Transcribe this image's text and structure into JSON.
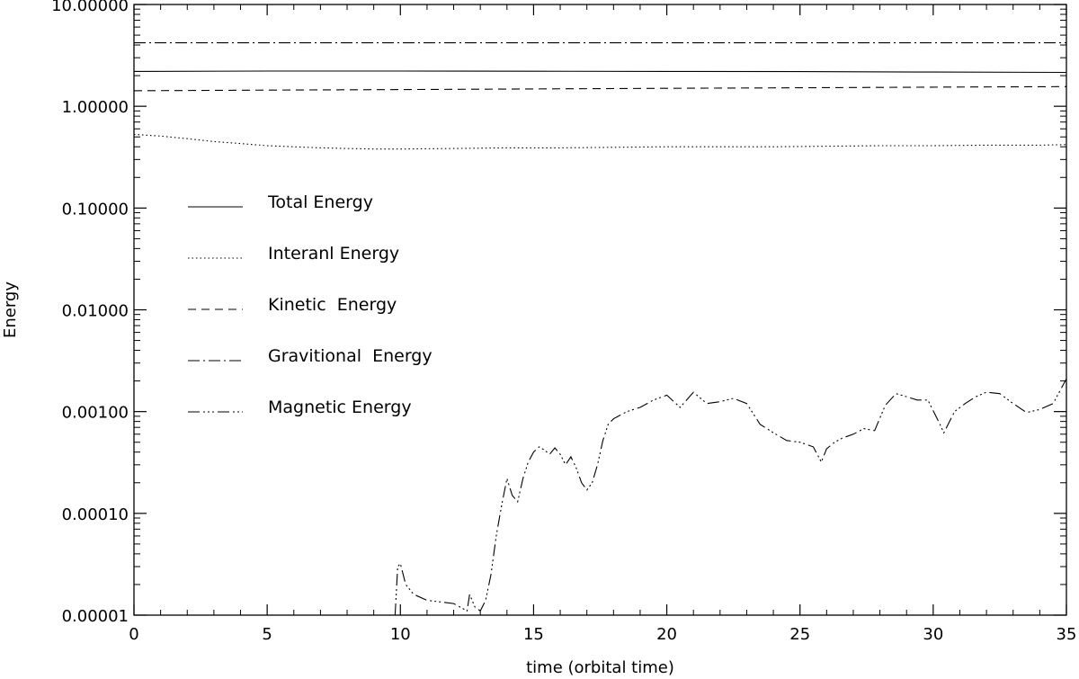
{
  "chart_data": {
    "type": "line",
    "title": "",
    "xlabel": "time (orbital time)",
    "ylabel": "Energy",
    "xlim": [
      0,
      35
    ],
    "ylim": [
      1e-05,
      10
    ],
    "yscale": "log",
    "grid": false,
    "legend_position": "left",
    "x_ticks": [
      0,
      5,
      10,
      15,
      20,
      25,
      30,
      35
    ],
    "x_tick_labels": [
      "0",
      "5",
      "10",
      "15",
      "20",
      "25",
      "30",
      "35"
    ],
    "y_ticks": [
      1e-05,
      0.0001,
      0.001,
      0.01,
      0.1,
      1,
      10
    ],
    "y_tick_labels": [
      "0.00001",
      "0.00010",
      "0.00100",
      "0.01000",
      "0.10000",
      "1.00000",
      "10.00000"
    ],
    "series": [
      {
        "name": "Total Energy",
        "dash": "solid",
        "x": [
          0,
          5,
          10,
          15,
          20,
          25,
          30,
          35
        ],
        "y": [
          2.2,
          2.22,
          2.22,
          2.21,
          2.2,
          2.19,
          2.17,
          2.15
        ]
      },
      {
        "name": "Interanl Energy",
        "dash": "dotted",
        "x": [
          0,
          1,
          2,
          3,
          4,
          5,
          6,
          7,
          8,
          9,
          10,
          12,
          14,
          16,
          18,
          20,
          22,
          24,
          26,
          28,
          30,
          32,
          34,
          35
        ],
        "y": [
          0.53,
          0.51,
          0.48,
          0.45,
          0.43,
          0.41,
          0.4,
          0.39,
          0.385,
          0.38,
          0.38,
          0.385,
          0.39,
          0.39,
          0.395,
          0.4,
          0.4,
          0.4,
          0.405,
          0.41,
          0.41,
          0.415,
          0.415,
          0.42
        ]
      },
      {
        "name": "Kinetic  Energy",
        "dash": "dashed",
        "x": [
          0,
          5,
          10,
          15,
          20,
          25,
          30,
          35
        ],
        "y": [
          1.42,
          1.44,
          1.46,
          1.48,
          1.5,
          1.52,
          1.54,
          1.56
        ]
      },
      {
        "name": "Gravitional  Energy",
        "dash": "dashdot",
        "x": [
          0,
          5,
          10,
          15,
          20,
          25,
          30,
          35
        ],
        "y": [
          4.2,
          4.2,
          4.2,
          4.2,
          4.2,
          4.2,
          4.2,
          4.2
        ]
      },
      {
        "name": "Magnetic Energy",
        "dash": "dashdotdotdot",
        "x": [
          9.8,
          9.9,
          10.0,
          10.2,
          10.5,
          11.0,
          11.5,
          12.0,
          12.5,
          12.6,
          12.8,
          13.0,
          13.2,
          13.4,
          13.6,
          13.8,
          14.0,
          14.2,
          14.4,
          14.6,
          14.8,
          15.0,
          15.2,
          15.4,
          15.6,
          15.8,
          16.0,
          16.2,
          16.4,
          16.6,
          16.8,
          17.0,
          17.2,
          17.4,
          17.6,
          17.8,
          18.0,
          18.5,
          19.0,
          19.5,
          20.0,
          20.5,
          21.0,
          21.5,
          22.0,
          22.5,
          23.0,
          23.5,
          24.0,
          24.5,
          25.0,
          25.5,
          25.8,
          26.0,
          26.3,
          26.6,
          27.0,
          27.4,
          27.8,
          28.2,
          28.6,
          29.0,
          29.4,
          29.8,
          30.2,
          30.4,
          30.8,
          31.2,
          31.6,
          32.0,
          32.5,
          33.0,
          33.5,
          34.0,
          34.5,
          35.0
        ],
        "y": [
          1e-05,
          3e-05,
          3.2e-05,
          2e-05,
          1.6e-05,
          1.4e-05,
          1.35e-05,
          1.3e-05,
          1.1e-05,
          1.6e-05,
          1.2e-05,
          1.1e-05,
          1.4e-05,
          2.5e-05,
          6e-05,
          0.00012,
          0.00022,
          0.00015,
          0.00013,
          0.00022,
          0.00032,
          0.0004,
          0.00045,
          0.00042,
          0.00038,
          0.00044,
          0.00038,
          0.0003,
          0.00036,
          0.00028,
          0.0002,
          0.00017,
          0.0002,
          0.0003,
          0.00052,
          0.00075,
          0.00085,
          0.001,
          0.0011,
          0.0013,
          0.00145,
          0.0011,
          0.00155,
          0.0012,
          0.00125,
          0.00135,
          0.0012,
          0.00075,
          0.00062,
          0.00052,
          0.0005,
          0.00045,
          0.00032,
          0.00043,
          0.0005,
          0.00055,
          0.0006,
          0.00068,
          0.00065,
          0.00115,
          0.0015,
          0.0014,
          0.0013,
          0.0013,
          0.0008,
          0.00062,
          0.001,
          0.0012,
          0.0014,
          0.00155,
          0.0015,
          0.0012,
          0.00098,
          0.00105,
          0.0012,
          0.0021
        ]
      }
    ]
  }
}
